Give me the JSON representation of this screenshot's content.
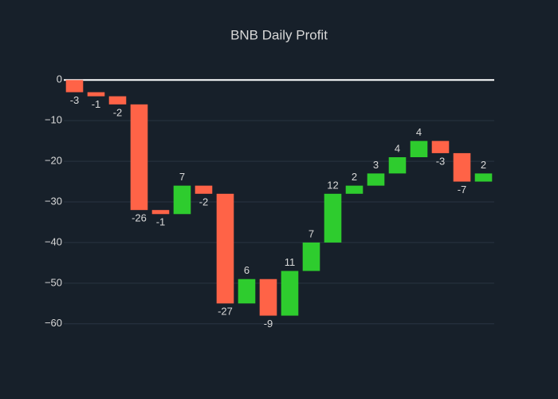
{
  "chart_data": {
    "type": "waterfall",
    "title": "BNB Daily Profit",
    "values": [
      -3,
      -1,
      -2,
      -26,
      -1,
      7,
      -2,
      -27,
      6,
      -9,
      11,
      7,
      12,
      2,
      3,
      4,
      4,
      -3,
      -7,
      2
    ],
    "increase_color": "#2ecc2e",
    "decrease_color": "#ff6347",
    "ylim": [
      -63,
      3
    ],
    "yticks": [
      {
        "value": 0,
        "label": "0"
      },
      {
        "value": -10,
        "label": "−10"
      },
      {
        "value": -20,
        "label": "−20"
      },
      {
        "value": -30,
        "label": "−30"
      },
      {
        "value": -40,
        "label": "−40"
      },
      {
        "value": -50,
        "label": "−50"
      },
      {
        "value": -60,
        "label": "−60"
      }
    ],
    "grid": true
  }
}
